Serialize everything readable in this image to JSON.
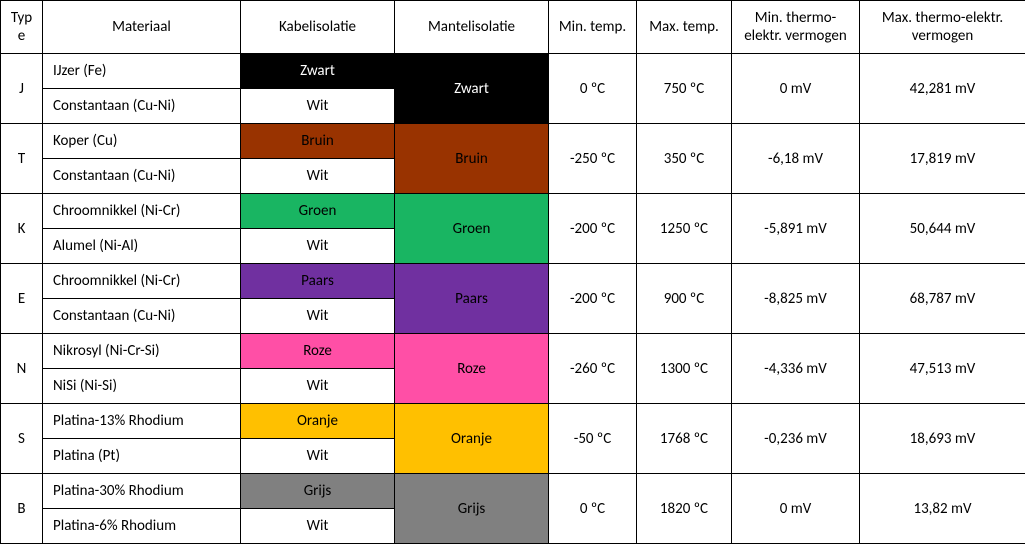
{
  "table": {
    "headers": {
      "type": "Typ\ne",
      "materiaal": "Materiaal",
      "kabel": "Kabelisolatie",
      "mantel": "Mantelisolatie",
      "mintemp": "Min. temp.",
      "maxtemp": "Max. temp.",
      "minv": "Min. thermo-elektr. vermogen",
      "maxv": "Max. thermo-elektr. vermogen"
    },
    "colors": {
      "zwart": {
        "bg": "#000000",
        "fg": "#ffffff"
      },
      "bruin": {
        "bg": "#993300",
        "fg": "#000000"
      },
      "groen": {
        "bg": "#19b562",
        "fg": "#000000"
      },
      "paars": {
        "bg": "#7030a0",
        "fg": "#000000"
      },
      "roze": {
        "bg": "#ff4fa6",
        "fg": "#000000"
      },
      "oranje": {
        "bg": "#ffc000",
        "fg": "#000000"
      },
      "grijs": {
        "bg": "#808080",
        "fg": "#000000"
      },
      "wit": {
        "bg": "#ffffff",
        "fg": "#000000"
      }
    },
    "rows": [
      {
        "type": "J",
        "mat1": "IJzer (Fe)",
        "mat2": "Constantaan (Cu-Ni)",
        "kabel1": {
          "label": "Zwart",
          "color": "zwart"
        },
        "kabel2": {
          "label": "Wit",
          "color": "wit"
        },
        "mantel": {
          "label": "Zwart",
          "color": "zwart"
        },
        "mintemp": "0 ºC",
        "maxtemp": "750  ºC",
        "minv": "0 mV",
        "maxv": "42,281 mV"
      },
      {
        "type": "T",
        "mat1": "Koper (Cu)",
        "mat2": "Constantaan (Cu-Ni)",
        "kabel1": {
          "label": "Bruin",
          "color": "bruin"
        },
        "kabel2": {
          "label": "Wit",
          "color": "wit"
        },
        "mantel": {
          "label": "Bruin",
          "color": "bruin"
        },
        "mintemp": "-250 ºC",
        "maxtemp": "350  ºC",
        "minv": "-6,18 mV",
        "maxv": "17,819 mV"
      },
      {
        "type": "K",
        "mat1": "Chroomnikkel (Ni-Cr)",
        "mat2": "Alumel (Ni-Al)",
        "kabel1": {
          "label": "Groen",
          "color": "groen"
        },
        "kabel2": {
          "label": "Wit",
          "color": "wit"
        },
        "mantel": {
          "label": "Groen",
          "color": "groen"
        },
        "mintemp": "-200 ºC",
        "maxtemp": "1250  ºC",
        "minv": "-5,891 mV",
        "maxv": "50,644 mV"
      },
      {
        "type": "E",
        "mat1": "Chroomnikkel (Ni-Cr)",
        "mat2": "Constantaan (Cu-Ni)",
        "kabel1": {
          "label": "Paars",
          "color": "paars"
        },
        "kabel2": {
          "label": "Wit",
          "color": "wit"
        },
        "mantel": {
          "label": "Paars",
          "color": "paars"
        },
        "mintemp": "-200 ºC",
        "maxtemp": "900  ºC",
        "minv": "-8,825 mV",
        "maxv": "68,787 mV"
      },
      {
        "type": "N",
        "mat1": "Nikrosyl (Ni-Cr-Si)",
        "mat2": "NiSi (Ni-Si)",
        "kabel1": {
          "label": "Roze",
          "color": "roze"
        },
        "kabel2": {
          "label": "Wit",
          "color": "wit"
        },
        "mantel": {
          "label": "Roze",
          "color": "roze"
        },
        "mintemp": "-260 ºC",
        "maxtemp": "1300  ºC",
        "minv": "-4,336 mV",
        "maxv": "47,513 mV"
      },
      {
        "type": "S",
        "mat1": "Platina-13% Rhodium",
        "mat2": "Platina (Pt)",
        "kabel1": {
          "label": "Oranje",
          "color": "oranje"
        },
        "kabel2": {
          "label": "Wit",
          "color": "wit"
        },
        "mantel": {
          "label": "Oranje",
          "color": "oranje"
        },
        "mintemp": "-50 ºC",
        "maxtemp": "1768  ºC",
        "minv": "-0,236 mV",
        "maxv": "18,693 mV"
      },
      {
        "type": "B",
        "mat1": "Platina-30% Rhodium",
        "mat2": "Platina-6% Rhodium",
        "kabel1": {
          "label": "Grijs",
          "color": "grijs"
        },
        "kabel2": {
          "label": "Wit",
          "color": "wit"
        },
        "mantel": {
          "label": "Grijs",
          "color": "grijs"
        },
        "mintemp": "0  ºC",
        "maxtemp": "1820  ºC",
        "minv": "0 mV",
        "maxv": "13,82 mV"
      }
    ]
  }
}
